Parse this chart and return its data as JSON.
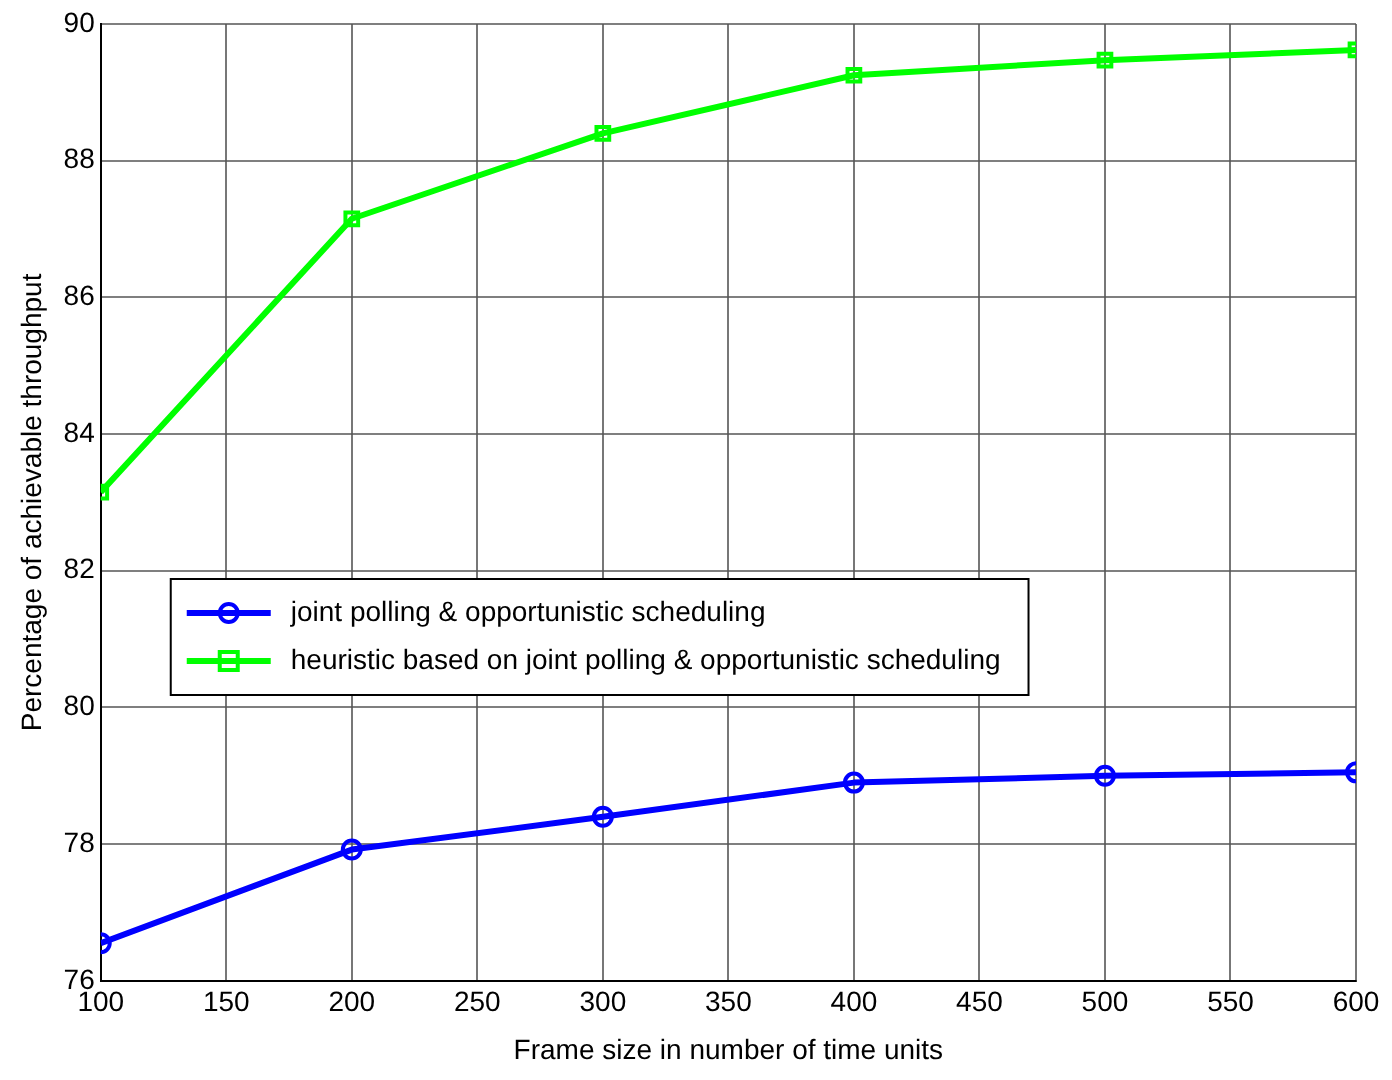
{
  "chart_data": {
    "type": "line",
    "xlabel": "Frame size in number of time units",
    "ylabel": "Percentage of achievable throughput",
    "x": [
      100,
      200,
      300,
      400,
      500,
      600
    ],
    "series": [
      {
        "name": "joint polling & opportunistic scheduling",
        "color": "#0000ff",
        "marker": "circle",
        "values": [
          76.55,
          77.92,
          78.4,
          78.9,
          79.0,
          79.05
        ]
      },
      {
        "name": "heuristic based on joint polling & opportunistic scheduling",
        "color": "#00ff00",
        "marker": "square",
        "values": [
          83.15,
          87.15,
          88.4,
          89.25,
          89.47,
          89.62
        ]
      }
    ],
    "xlim": [
      100,
      600
    ],
    "xticks": [
      100,
      150,
      200,
      250,
      300,
      350,
      400,
      450,
      500,
      550,
      600
    ],
    "ylim": [
      76,
      90
    ],
    "yticks": [
      76,
      78,
      80,
      82,
      84,
      86,
      88,
      90
    ],
    "grid": true,
    "legend": "left",
    "line_style": "solid"
  }
}
